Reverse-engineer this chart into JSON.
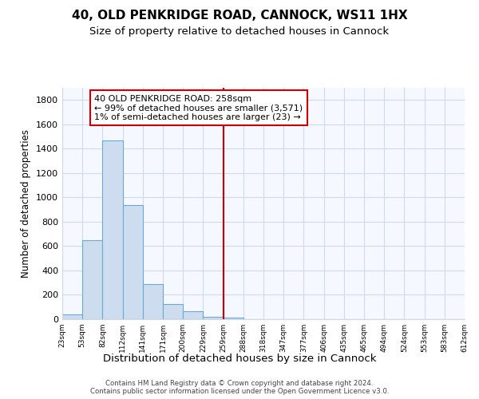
{
  "title": "40, OLD PENKRIDGE ROAD, CANNOCK, WS11 1HX",
  "subtitle": "Size of property relative to detached houses in Cannock",
  "xlabel": "Distribution of detached houses by size in Cannock",
  "ylabel": "Number of detached properties",
  "bar_values": [
    40,
    650,
    1470,
    935,
    290,
    125,
    65,
    22,
    10,
    0,
    0,
    0,
    0,
    0,
    0,
    0,
    0,
    0,
    0,
    0
  ],
  "bin_labels": [
    "23sqm",
    "53sqm",
    "82sqm",
    "112sqm",
    "141sqm",
    "171sqm",
    "200sqm",
    "229sqm",
    "259sqm",
    "288sqm",
    "318sqm",
    "347sqm",
    "377sqm",
    "406sqm",
    "435sqm",
    "465sqm",
    "494sqm",
    "524sqm",
    "553sqm",
    "583sqm",
    "612sqm"
  ],
  "bar_color": "#cddcee",
  "bar_edge_color": "#6aaad4",
  "vline_index": 8,
  "marker_label": "40 OLD PENKRIDGE ROAD: 258sqm",
  "annotation_line1": "← 99% of detached houses are smaller (3,571)",
  "annotation_line2": "1% of semi-detached houses are larger (23) →",
  "vline_color": "#cc0000",
  "background_color": "#ffffff",
  "plot_bg_color": "#f5f8ff",
  "grid_color": "#d0d8ec",
  "footer_line1": "Contains HM Land Registry data © Crown copyright and database right 2024.",
  "footer_line2": "Contains public sector information licensed under the Open Government Licence v3.0.",
  "ylim": [
    0,
    1900
  ],
  "yticks": [
    0,
    200,
    400,
    600,
    800,
    1000,
    1200,
    1400,
    1600,
    1800
  ]
}
